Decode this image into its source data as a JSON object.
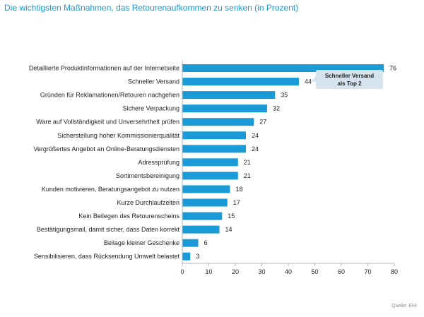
{
  "chart_data": {
    "type": "bar",
    "orientation": "horizontal",
    "title": "Die wichtigsten Maßnahmen, das Retourenaufkommen zu senken (in Prozent)",
    "categories": [
      "Detaillierte Produktinformationen auf der Internetseite",
      "Schneller Versand",
      "Gründen für Reklamationen/Retouren nachgehen",
      "Sichere Verpackung",
      "Ware auf Vollständigkeit und Unversehrtheit prüfen",
      "Sicherstellung hoher Kommissionierqualität",
      "Vergrößertes Angebot an Online-Beratungsdiensten",
      "Adressprüfung",
      "Sortimentsbereinigung",
      "Kunden motivieren, Beratungsangebot zu nutzen",
      "Kurze Durchlaufzeiten",
      "Kein Beilegen des Retourenscheins",
      "Bestätigungsmail, damit sicher, dass Daten korrekt",
      "Beilage kleiner Geschenke",
      "Sensibilisieren, dass Rücksendung Umwelt belastet"
    ],
    "values": [
      76,
      44,
      35,
      32,
      27,
      24,
      24,
      21,
      21,
      18,
      17,
      15,
      14,
      6,
      3
    ],
    "xlim": [
      0,
      80
    ],
    "xticks": [
      0,
      10,
      20,
      30,
      40,
      50,
      60,
      70,
      80
    ],
    "xlabel": "",
    "ylabel": "",
    "grid": false,
    "annotation": {
      "line1": "Schneller Versand",
      "line2": "als Top 2",
      "target_index": 1
    },
    "source": "Quelle: EHI",
    "colors": {
      "bar": "#1a9ad6",
      "title": "#1a9ad6",
      "callout_bg": "#d4e3ee",
      "axis": "#b5b5b5",
      "text": "#1f1f1f"
    }
  }
}
